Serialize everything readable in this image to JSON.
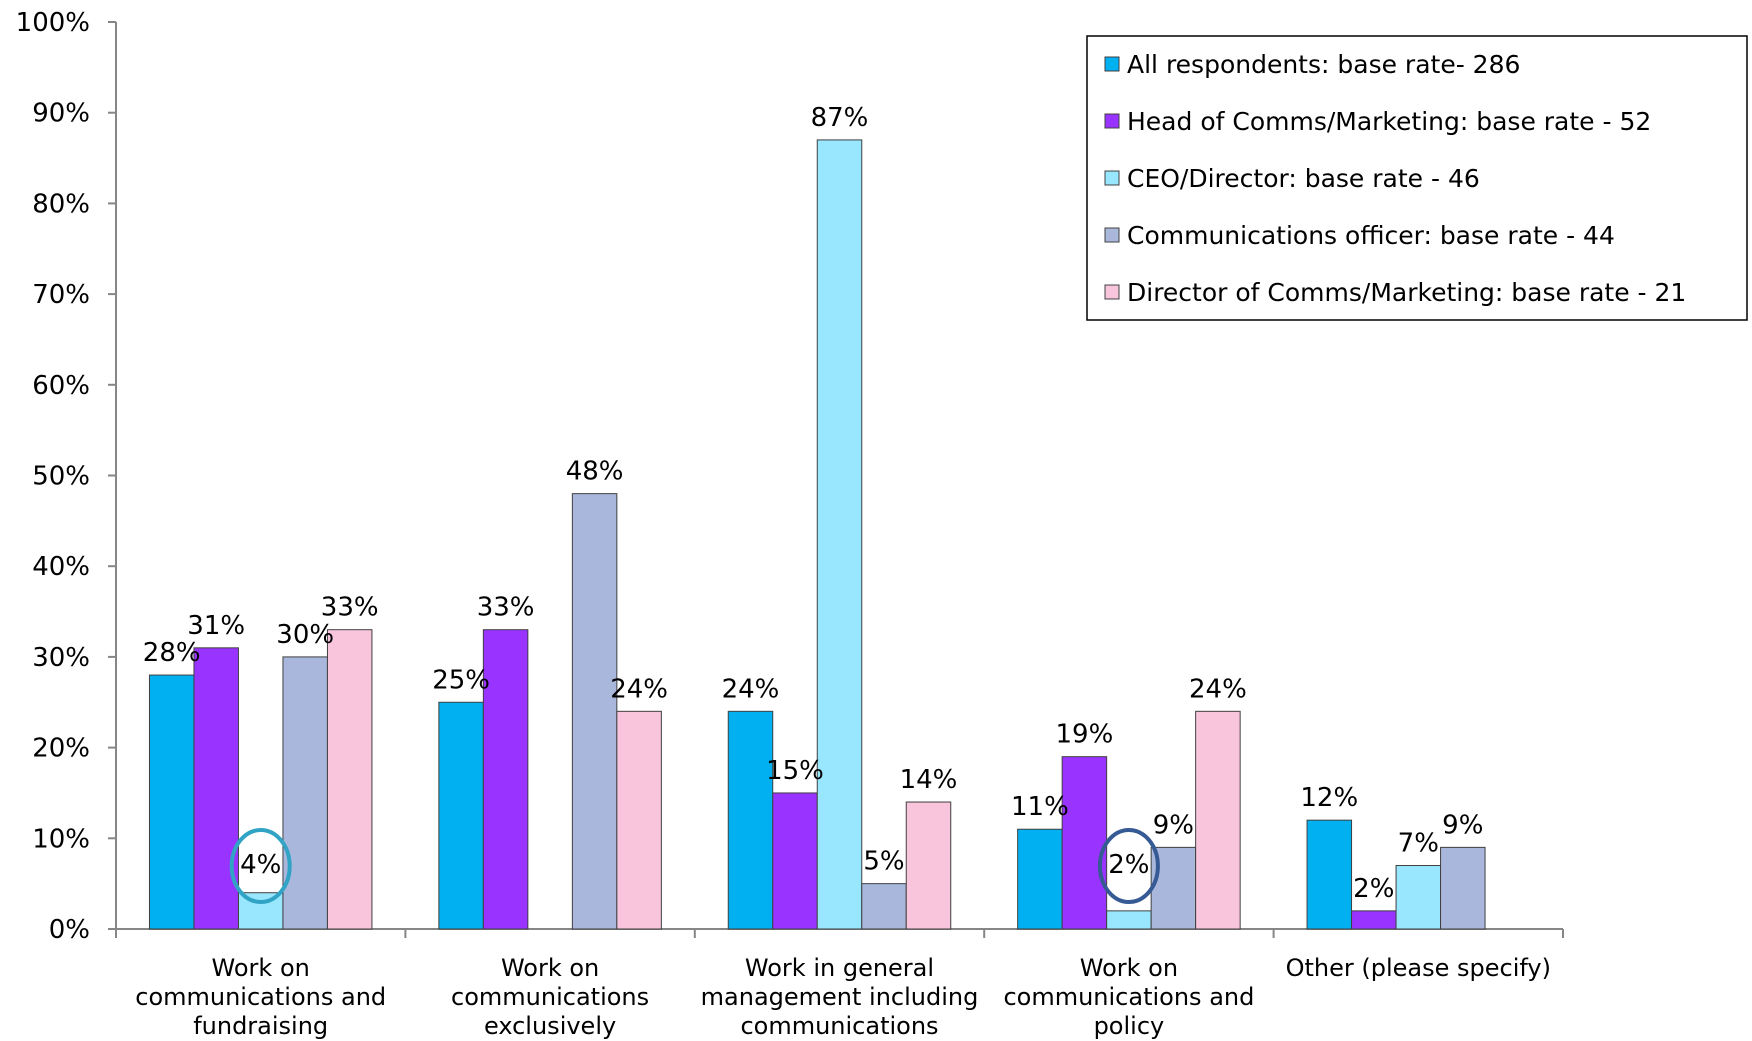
{
  "chart_data": {
    "type": "bar",
    "categories": [
      [
        "Work on",
        "communications and",
        "fundraising"
      ],
      [
        "Work on",
        "communications",
        "exclusively"
      ],
      [
        "Work in general",
        "management including",
        "communications"
      ],
      [
        "Work on",
        "communications and",
        "policy"
      ],
      [
        "Other (please specify)"
      ]
    ],
    "y_ticks": [
      "0%",
      "10%",
      "20%",
      "30%",
      "40%",
      "50%",
      "60%",
      "70%",
      "80%",
      "90%",
      "100%"
    ],
    "ylim": [
      0,
      100
    ],
    "unit": "%",
    "legend_position": "top-right",
    "series": [
      {
        "name": "All respondents: base rate- 286",
        "color": "#00b0f0",
        "values": [
          28,
          25,
          24,
          11,
          12
        ],
        "labels": [
          "28%",
          "25%",
          "24%",
          "11%",
          "12%"
        ]
      },
      {
        "name": "Head of Comms/Marketing: base rate - 52",
        "color": "#9933ff",
        "values": [
          31,
          33,
          15,
          19,
          2
        ],
        "labels": [
          "31%",
          "33%",
          "15%",
          "19%",
          "2%"
        ]
      },
      {
        "name": "CEO/Director: base rate - 46",
        "color": "#99e6ff",
        "values": [
          4,
          null,
          87,
          2,
          7
        ],
        "labels": [
          "4%",
          null,
          "87%",
          "2%",
          "7%"
        ]
      },
      {
        "name": "Communications officer: base rate - 44",
        "color": "#a9b7dd",
        "values": [
          30,
          48,
          5,
          9,
          9
        ],
        "labels": [
          "30%",
          "48%",
          "5%",
          "9%",
          "9%"
        ]
      },
      {
        "name": "Director of Comms/Marketing: base rate - 21",
        "color": "#f9c5dd",
        "values": [
          33,
          24,
          14,
          24,
          null
        ],
        "labels": [
          "33%",
          "24%",
          "14%",
          "24%",
          null
        ]
      }
    ],
    "highlight_circles": [
      {
        "category": 0,
        "series": 2,
        "color": "#31a3c4"
      },
      {
        "category": 3,
        "series": 2,
        "color": "#365a94"
      }
    ]
  }
}
